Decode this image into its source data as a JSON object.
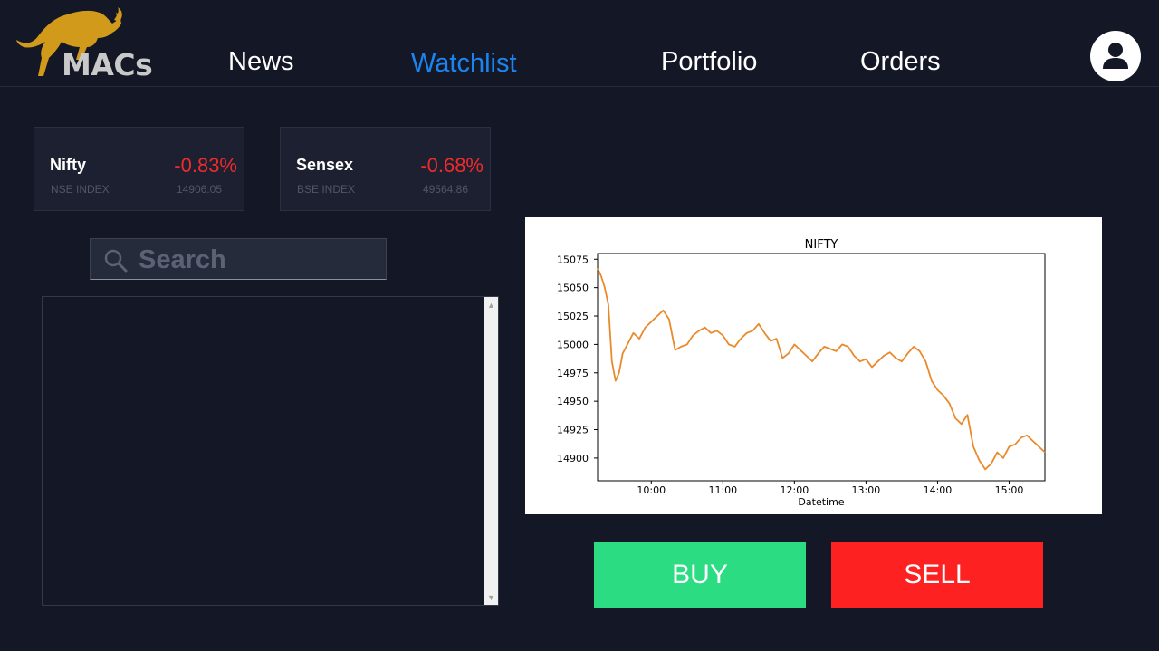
{
  "app": {
    "logo_text": "MACs"
  },
  "nav": {
    "news": "News",
    "watchlist": "Watchlist",
    "portfolio": "Portfolio",
    "orders": "Orders",
    "active_color": "#1b84ef"
  },
  "indices": [
    {
      "name": "Nifty",
      "change": "-0.83%",
      "exchange": "NSE INDEX",
      "value": "14906.05"
    },
    {
      "name": "Sensex",
      "change": "-0.68%",
      "exchange": "BSE INDEX",
      "value": "49564.86"
    }
  ],
  "search": {
    "placeholder": "Search",
    "value": ""
  },
  "chart_data": {
    "type": "line",
    "title": "NIFTY",
    "xlabel": "Datetime",
    "ylabel": "",
    "x_ticks": [
      "10:00",
      "11:00",
      "12:00",
      "13:00",
      "14:00",
      "15:00"
    ],
    "y_ticks": [
      14900,
      14925,
      14950,
      14975,
      15000,
      15025,
      15050,
      15075
    ],
    "ylim": [
      14880,
      15080
    ],
    "xlim": [
      "09:15",
      "15:30"
    ],
    "line_color": "#e98a2c",
    "grid": false,
    "series": [
      {
        "x": [
          "09:15",
          "09:18",
          "09:21",
          "09:24",
          "09:27",
          "09:30",
          "09:33",
          "09:36",
          "09:40",
          "09:45",
          "09:50",
          "09:55",
          "10:00",
          "10:05",
          "10:10",
          "10:15",
          "10:20",
          "10:25",
          "10:30",
          "10:35",
          "10:40",
          "10:45",
          "10:50",
          "10:55",
          "11:00",
          "11:05",
          "11:10",
          "11:15",
          "11:20",
          "11:25",
          "11:30",
          "11:35",
          "11:40",
          "11:45",
          "11:50",
          "11:55",
          "12:00",
          "12:05",
          "12:10",
          "12:15",
          "12:20",
          "12:25",
          "12:30",
          "12:35",
          "12:40",
          "12:45",
          "12:50",
          "12:55",
          "13:00",
          "13:05",
          "13:10",
          "13:15",
          "13:20",
          "13:25",
          "13:30",
          "13:35",
          "13:40",
          "13:45",
          "13:50",
          "13:55",
          "14:00",
          "14:05",
          "14:10",
          "14:15",
          "14:20",
          "14:25",
          "14:30",
          "14:35",
          "14:40",
          "14:45",
          "14:50",
          "14:55",
          "15:00",
          "15:05",
          "15:10",
          "15:15",
          "15:20",
          "15:25",
          "15:30"
        ],
        "values": [
          15067,
          15060,
          15050,
          15035,
          14985,
          14968,
          14975,
          14992,
          15000,
          15010,
          15005,
          15015,
          15020,
          15025,
          15030,
          15022,
          14995,
          14998,
          15000,
          15008,
          15012,
          15015,
          15010,
          15012,
          15008,
          15000,
          14998,
          15005,
          15010,
          15012,
          15018,
          15010,
          15003,
          15005,
          14988,
          14992,
          15000,
          14995,
          14990,
          14985,
          14992,
          14998,
          14996,
          14994,
          15000,
          14998,
          14990,
          14985,
          14987,
          14980,
          14985,
          14990,
          14993,
          14988,
          14985,
          14992,
          14998,
          14994,
          14985,
          14968,
          14960,
          14955,
          14948,
          14935,
          14930,
          14938,
          14910,
          14898,
          14890,
          14895,
          14905,
          14900,
          14910,
          14912,
          14918,
          14920,
          14915,
          14910,
          14905
        ]
      }
    ]
  },
  "actions": {
    "buy": "BUY",
    "sell": "SELL"
  },
  "colors": {
    "background": "#141826",
    "buy": "#2bdc82",
    "sell": "#fe2121",
    "negative": "#ef2b2b"
  }
}
